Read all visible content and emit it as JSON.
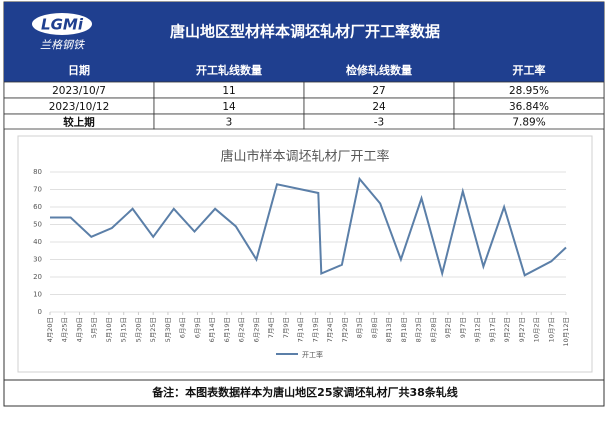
{
  "logo": {
    "mark": "LGMi",
    "name": "兰格钢铁"
  },
  "header": {
    "title": "唐山地区型材样本调坯轧材厂开工率数据"
  },
  "table": {
    "columns": [
      "日期",
      "开工轧线数量",
      "检修轧线数量",
      "开工率"
    ],
    "rows": [
      [
        "2023/10/7",
        "11",
        "27",
        "28.95%"
      ],
      [
        "2023/10/12",
        "14",
        "24",
        "36.84%"
      ],
      [
        "较上期",
        "3",
        "-3",
        "7.89%"
      ]
    ]
  },
  "chart_data": {
    "type": "line",
    "title": "唐山市样本调坯轧材厂开工率",
    "x": [
      "04-20",
      "04-27",
      "05-04",
      "05-11",
      "05-18",
      "05-25",
      "06-01",
      "06-08",
      "06-15",
      "06-22",
      "06-29",
      "07-06",
      "07-20",
      "07-21",
      "07-28",
      "08-03",
      "08-10",
      "08-17",
      "08-24",
      "08-31",
      "09-07",
      "09-14",
      "09-21",
      "09-28",
      "10-07",
      "10-12"
    ],
    "series": [
      {
        "name": "开工率",
        "color": "#5b7fa8",
        "values": [
          54,
          54,
          43,
          48,
          59,
          43,
          59,
          46,
          59,
          49,
          30,
          73,
          68,
          22,
          27,
          76,
          62,
          30,
          65,
          22,
          69,
          26,
          60,
          21,
          28.95,
          36.84
        ]
      }
    ],
    "xlim": [
      "04-20",
      "10-12"
    ],
    "xticks": [
      {
        "value": "04-20",
        "label": "4月20日"
      },
      {
        "value": "04-25",
        "label": "4月25日"
      },
      {
        "value": "04-30",
        "label": "4月30日"
      },
      {
        "value": "05-05",
        "label": "5月5日"
      },
      {
        "value": "05-10",
        "label": "5月10日"
      },
      {
        "value": "05-15",
        "label": "5月15日"
      },
      {
        "value": "05-20",
        "label": "5月20日"
      },
      {
        "value": "05-25",
        "label": "5月25日"
      },
      {
        "value": "05-30",
        "label": "5月30日"
      },
      {
        "value": "06-04",
        "label": "6月4日"
      },
      {
        "value": "06-09",
        "label": "6月9日"
      },
      {
        "value": "06-14",
        "label": "6月14日"
      },
      {
        "value": "06-19",
        "label": "6月19日"
      },
      {
        "value": "06-24",
        "label": "6月24日"
      },
      {
        "value": "06-29",
        "label": "6月29日"
      },
      {
        "value": "07-04",
        "label": "7月4日"
      },
      {
        "value": "07-09",
        "label": "7月9日"
      },
      {
        "value": "07-14",
        "label": "7月14日"
      },
      {
        "value": "07-19",
        "label": "7月19日"
      },
      {
        "value": "07-24",
        "label": "7月24日"
      },
      {
        "value": "07-29",
        "label": "7月29日"
      },
      {
        "value": "08-03",
        "label": "8月3日"
      },
      {
        "value": "08-08",
        "label": "8月8日"
      },
      {
        "value": "08-13",
        "label": "8月13日"
      },
      {
        "value": "08-18",
        "label": "8月18日"
      },
      {
        "value": "08-23",
        "label": "8月23日"
      },
      {
        "value": "08-28",
        "label": "8月28日"
      },
      {
        "value": "09-02",
        "label": "9月2日"
      },
      {
        "value": "09-07",
        "label": "9月7日"
      },
      {
        "value": "09-12",
        "label": "9月12日"
      },
      {
        "value": "09-17",
        "label": "9月17日"
      },
      {
        "value": "09-22",
        "label": "9月22日"
      },
      {
        "value": "09-27",
        "label": "9月27日"
      },
      {
        "value": "10-02",
        "label": "10月2日"
      },
      {
        "value": "10-07",
        "label": "10月7日"
      },
      {
        "value": "10-12",
        "label": "10月12日"
      }
    ],
    "ylim": [
      0,
      80
    ],
    "yticks": [
      0,
      10,
      20,
      30,
      40,
      50,
      60,
      70,
      80
    ],
    "grid": true,
    "legend": "bottom"
  },
  "note": "备注：本图表数据样本为唐山地区25家调坯轧材厂共38条轧线"
}
